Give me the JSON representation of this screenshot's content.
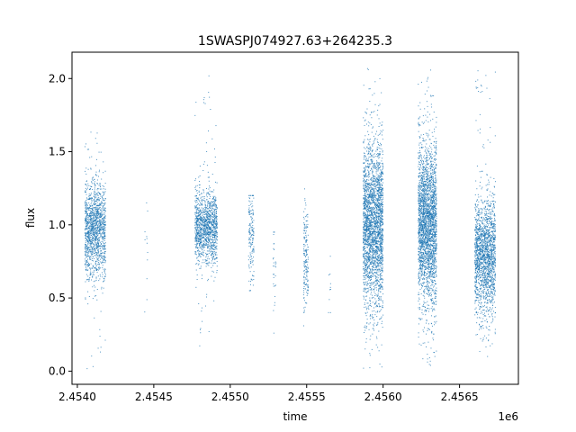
{
  "chart_data": {
    "type": "scatter",
    "title": "1SWASPJ074927.63+264235.3",
    "xlabel": "time",
    "ylabel": "flux",
    "x_offset_label": "1e6",
    "xlim": [
      2453965,
      2456885
    ],
    "ylim": [
      -0.09,
      2.18
    ],
    "xticks": [
      2454000,
      2454500,
      2455000,
      2455500,
      2456000,
      2456500
    ],
    "xtick_labels": [
      "2.4540",
      "2.4545",
      "2.4550",
      "2.4555",
      "2.4560",
      "2.4565"
    ],
    "yticks": [
      0.0,
      0.5,
      1.0,
      1.5,
      2.0
    ],
    "ytick_labels": [
      "0.0",
      "0.5",
      "1.0",
      "1.5",
      "2.0"
    ],
    "grid": false,
    "marker_color": "#1f77b4",
    "observing_seasons": [
      {
        "x_start": 2454050,
        "x_end": 2454185,
        "flux_center": 0.97,
        "flux_spread": 0.17,
        "flux_min": 0.0,
        "flux_max": 1.77,
        "points": 1400
      },
      {
        "x_start": 2454440,
        "x_end": 2454460,
        "flux_center": 0.75,
        "flux_spread": 0.3,
        "flux_min": 0.15,
        "flux_max": 1.15,
        "points": 12
      },
      {
        "x_start": 2454770,
        "x_end": 2454915,
        "flux_center": 0.98,
        "flux_spread": 0.12,
        "flux_min": 0.15,
        "flux_max": 2.05,
        "points": 1300
      },
      {
        "x_start": 2455120,
        "x_end": 2455155,
        "flux_center": 0.95,
        "flux_spread": 0.15,
        "flux_min": 0.55,
        "flux_max": 1.2,
        "points": 160
      },
      {
        "x_start": 2455280,
        "x_end": 2455300,
        "flux_center": 0.75,
        "flux_spread": 0.2,
        "flux_min": 0.25,
        "flux_max": 0.95,
        "points": 30
      },
      {
        "x_start": 2455480,
        "x_end": 2455510,
        "flux_center": 0.75,
        "flux_spread": 0.2,
        "flux_min": 0.3,
        "flux_max": 1.3,
        "points": 180
      },
      {
        "x_start": 2455640,
        "x_end": 2455660,
        "flux_center": 0.6,
        "flux_spread": 0.15,
        "flux_min": 0.4,
        "flux_max": 0.9,
        "points": 10
      },
      {
        "x_start": 2455870,
        "x_end": 2456000,
        "flux_center": 1.0,
        "flux_spread": 0.28,
        "flux_min": 0.02,
        "flux_max": 2.07,
        "points": 2600
      },
      {
        "x_start": 2456230,
        "x_end": 2456350,
        "flux_center": 1.0,
        "flux_spread": 0.28,
        "flux_min": 0.03,
        "flux_max": 2.07,
        "points": 2600
      },
      {
        "x_start": 2456600,
        "x_end": 2456735,
        "flux_center": 0.78,
        "flux_spread": 0.2,
        "flux_min": 0.1,
        "flux_max": 2.07,
        "points": 1800
      }
    ]
  }
}
